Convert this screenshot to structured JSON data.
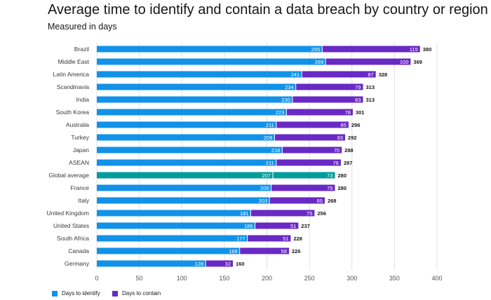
{
  "title": "Average time to identify and contain a data breach by country or region",
  "subtitle": "Measured in days",
  "legend": {
    "identify_label": "Days to identify",
    "contain_label": "Days to contain"
  },
  "colors": {
    "identify": "#1192e8",
    "contain": "#6929c4",
    "highlight": "#009d9a",
    "grid": "#e0e0e0",
    "text": "#161616"
  },
  "chart_data": {
    "type": "bar",
    "orientation": "horizontal",
    "stacked": true,
    "title": "Average time to identify and contain a data breach by country or region",
    "subtitle": "Measured in days",
    "xlim": [
      0,
      400
    ],
    "xticks": [
      0,
      50,
      100,
      150,
      200,
      250,
      300,
      350,
      400
    ],
    "grid": true,
    "legend_position": "bottom-left",
    "highlighted_category": "Global average",
    "categories": [
      "Brazil",
      "Middle East",
      "Latin America",
      "Scandinavia",
      "India",
      "South Korea",
      "Australia",
      "Turkey",
      "Japan",
      "ASEAN",
      "Global average",
      "France",
      "Italy",
      "United Kingdom",
      "United States",
      "South Africa",
      "Canada",
      "Germany"
    ],
    "series": [
      {
        "name": "Days to identify",
        "values": [
          265,
          269,
          241,
          234,
          230,
          223,
          211,
          209,
          218,
          211,
          207,
          205,
          203,
          181,
          186,
          177,
          168,
          128
        ]
      },
      {
        "name": "Days to contain",
        "values": [
          115,
          100,
          87,
          79,
          83,
          78,
          85,
          83,
          70,
          76,
          73,
          75,
          65,
          75,
          51,
          51,
          58,
          32
        ]
      }
    ],
    "totals": [
      380,
      369,
      328,
      313,
      313,
      301,
      296,
      292,
      288,
      287,
      280,
      280,
      268,
      256,
      237,
      228,
      226,
      160
    ]
  }
}
